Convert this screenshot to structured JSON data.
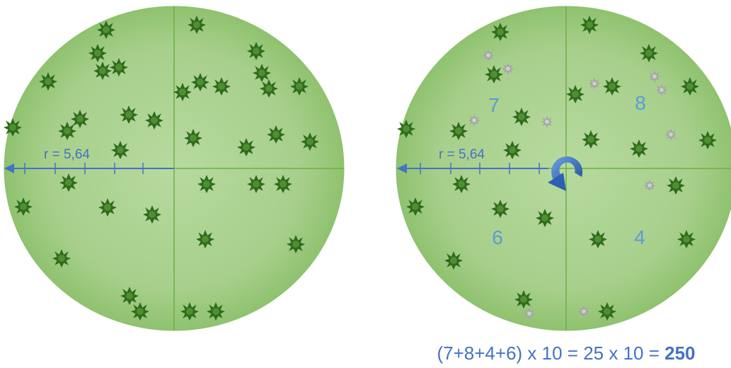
{
  "left": {
    "radius_label": "r = 5,64"
  },
  "right": {
    "radius_label": "r = 5,64",
    "quadrants": {
      "top_left": "7",
      "top_right": "8",
      "bottom_left": "6",
      "bottom_right": "4"
    }
  },
  "formula": {
    "expression": "(7+8+4+6) x 10 = 25 x 10 =",
    "result": "250"
  }
}
